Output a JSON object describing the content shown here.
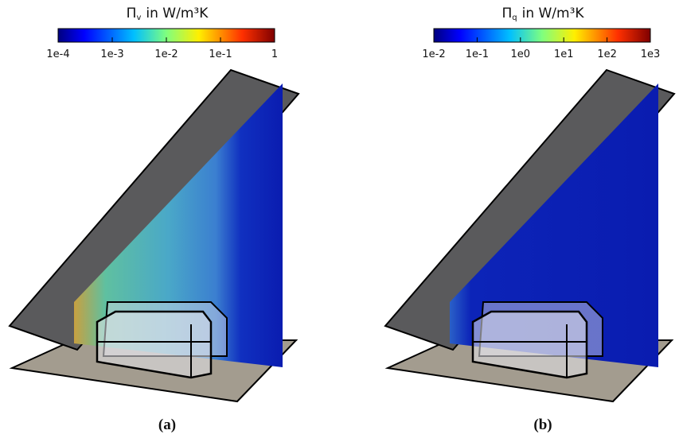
{
  "panels": [
    {
      "colorbar": {
        "symbol": "Π",
        "subscript": "v",
        "unit": "in  W/m³K",
        "tick_labels": [
          "1e-4",
          "1e-3",
          "1e-2",
          "1e-1",
          "1"
        ]
      },
      "caption": "(a)"
    },
    {
      "colorbar": {
        "symbol": "Π",
        "subscript": "q",
        "unit": "in  W/m³K",
        "tick_labels": [
          "1e-2",
          "1e-1",
          "1e0",
          "1e1",
          "1e2",
          "1e3"
        ]
      },
      "caption": "(b)"
    }
  ]
}
